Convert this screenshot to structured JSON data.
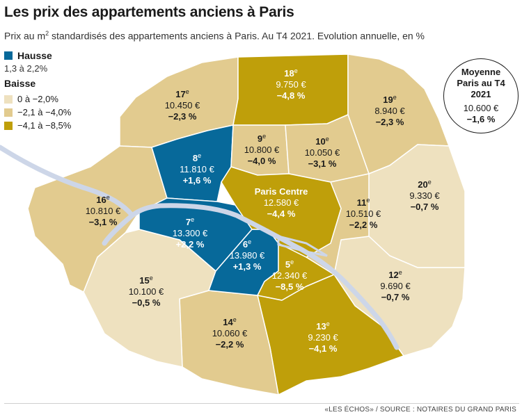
{
  "title": "Les prix des appartements anciens à Paris",
  "subtitle": {
    "before": "Prix au m",
    "sup": "2",
    "after": " standardisés des appartements anciens à Paris. Au T4 2021. Evolution annuelle, en %"
  },
  "legend": {
    "hausse_title": "Hausse",
    "hausse_range": "1,3 à 2,2%",
    "baisse_title": "Baisse",
    "baisse_ranges": [
      "0 à −2,0%",
      "−2,1 à −4,0%",
      "−4,1 à −8,5%"
    ]
  },
  "colors": {
    "hausse": "#07699a",
    "baisse_light": "#eee1bf",
    "baisse_mid": "#e2cb8f",
    "baisse_dark": "#bf9f0a",
    "seine": "#cdd6e8",
    "border": "#ffffff"
  },
  "arrondissements": [
    {
      "id": "paris-centre",
      "name": "Paris Centre",
      "price": "12.580 €",
      "variation": "−4,4 %",
      "class": "baisse_dark"
    },
    {
      "id": "5",
      "num": "5",
      "price": "12.340 €",
      "variation": "−8,5 %",
      "class": "baisse_dark"
    },
    {
      "id": "6",
      "num": "6",
      "price": "13.980 €",
      "variation": "+1,3 %",
      "class": "hausse"
    },
    {
      "id": "7",
      "num": "7",
      "price": "13.300 €",
      "variation": "+2,2 %",
      "class": "hausse"
    },
    {
      "id": "8",
      "num": "8",
      "price": "11.810 €",
      "variation": "+1,6 %",
      "class": "hausse"
    },
    {
      "id": "9",
      "num": "9",
      "price": "10.800 €",
      "variation": "−4,0 %",
      "class": "baisse_mid"
    },
    {
      "id": "10",
      "num": "10",
      "price": "10.050 €",
      "variation": "−3,1 %",
      "class": "baisse_mid"
    },
    {
      "id": "11",
      "num": "11",
      "price": "10.510 €",
      "variation": "−2,2 %",
      "class": "baisse_mid"
    },
    {
      "id": "12",
      "num": "12",
      "price": "9.690 €",
      "variation": "−0,7 %",
      "class": "baisse_light"
    },
    {
      "id": "13",
      "num": "13",
      "price": "9.230 €",
      "variation": "−4,1 %",
      "class": "baisse_dark"
    },
    {
      "id": "14",
      "num": "14",
      "price": "10.060 €",
      "variation": "−2,2 %",
      "class": "baisse_mid"
    },
    {
      "id": "15",
      "num": "15",
      "price": "10.100 €",
      "variation": "−0,5 %",
      "class": "baisse_light"
    },
    {
      "id": "16",
      "num": "16",
      "price": "10.810 €",
      "variation": "−3,1 %",
      "class": "baisse_mid"
    },
    {
      "id": "17",
      "num": "17",
      "price": "10.450 €",
      "variation": "−2,3 %",
      "class": "baisse_mid"
    },
    {
      "id": "18",
      "num": "18",
      "price": "9.750 €",
      "variation": "−4,8 %",
      "class": "baisse_dark"
    },
    {
      "id": "19",
      "num": "19",
      "price": "8.940 €",
      "variation": "−2,3 %",
      "class": "baisse_mid"
    },
    {
      "id": "20",
      "num": "20",
      "price": "9.330 €",
      "variation": "−0,7 %",
      "class": "baisse_light"
    }
  ],
  "average": {
    "title_line1": "Moyenne",
    "title_line2": "Paris au T4",
    "title_line3": "2021",
    "price": "10.600 €",
    "variation": "−1,6 %"
  },
  "source": "«LES ÉCHOS» / SOURCE : NOTAIRES DU GRAND PARIS"
}
